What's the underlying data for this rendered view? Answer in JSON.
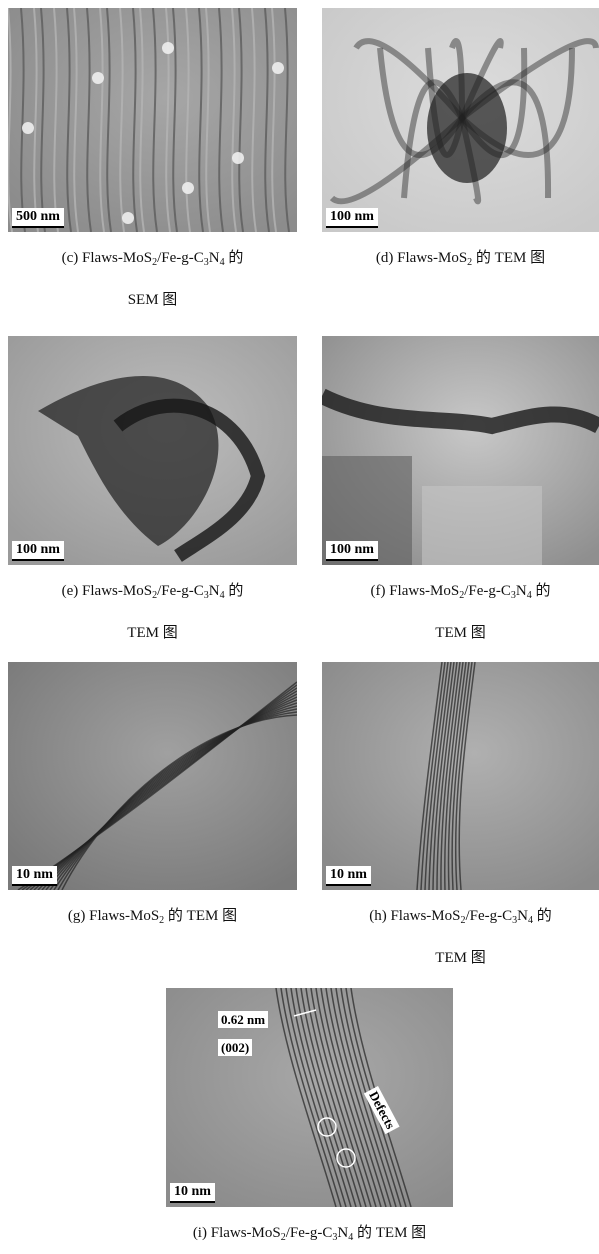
{
  "panels": [
    {
      "scale": "500 nm",
      "caption": [
        [
          {
            "text": "(c) Flaws-MoS"
          },
          {
            "sub": "2"
          },
          {
            "text": "/Fe-g-C"
          },
          {
            "sub": "3"
          },
          {
            "text": "N"
          },
          {
            "sub": "4"
          },
          {
            "text": " 的"
          }
        ],
        [
          {
            "text": "SEM 图"
          }
        ]
      ]
    },
    {
      "scale": "100 nm",
      "caption": [
        [
          {
            "text": "(d) Flaws-MoS"
          },
          {
            "sub": "2"
          },
          {
            "text": " 的 TEM 图"
          }
        ]
      ]
    },
    {
      "scale": "100 nm",
      "caption": [
        [
          {
            "text": "(e) Flaws-MoS"
          },
          {
            "sub": "2"
          },
          {
            "text": "/Fe-g-C"
          },
          {
            "sub": "3"
          },
          {
            "text": "N"
          },
          {
            "sub": "4"
          },
          {
            "text": " 的"
          }
        ],
        [
          {
            "text": "TEM 图"
          }
        ]
      ]
    },
    {
      "scale": "100 nm",
      "caption": [
        [
          {
            "text": "(f) Flaws-MoS"
          },
          {
            "sub": "2"
          },
          {
            "text": "/Fe-g-C"
          },
          {
            "sub": "3"
          },
          {
            "text": "N"
          },
          {
            "sub": "4"
          },
          {
            "text": " 的"
          }
        ],
        [
          {
            "text": "TEM 图"
          }
        ]
      ]
    },
    {
      "scale": "10 nm",
      "caption": [
        [
          {
            "text": "(g) Flaws-MoS"
          },
          {
            "sub": "2"
          },
          {
            "text": " 的 TEM 图"
          }
        ]
      ]
    },
    {
      "scale": "10 nm",
      "caption": [
        [
          {
            "text": "(h) Flaws-MoS"
          },
          {
            "sub": "2"
          },
          {
            "text": "/Fe-g-C"
          },
          {
            "sub": "3"
          },
          {
            "text": "N"
          },
          {
            "sub": "4"
          },
          {
            "text": " 的"
          }
        ],
        [
          {
            "text": "TEM 图"
          }
        ]
      ]
    },
    {
      "scale": "10 nm",
      "caption": [
        [
          {
            "text": "(i) Flaws-MoS"
          },
          {
            "sub": "2"
          },
          {
            "text": "/Fe-g-C"
          },
          {
            "sub": "3"
          },
          {
            "text": "N"
          },
          {
            "sub": "4"
          },
          {
            "text": " 的 TEM 图"
          }
        ]
      ],
      "annotations": {
        "spacing": "0.62 nm",
        "plane": "(002)",
        "defects": "Defects"
      }
    }
  ]
}
